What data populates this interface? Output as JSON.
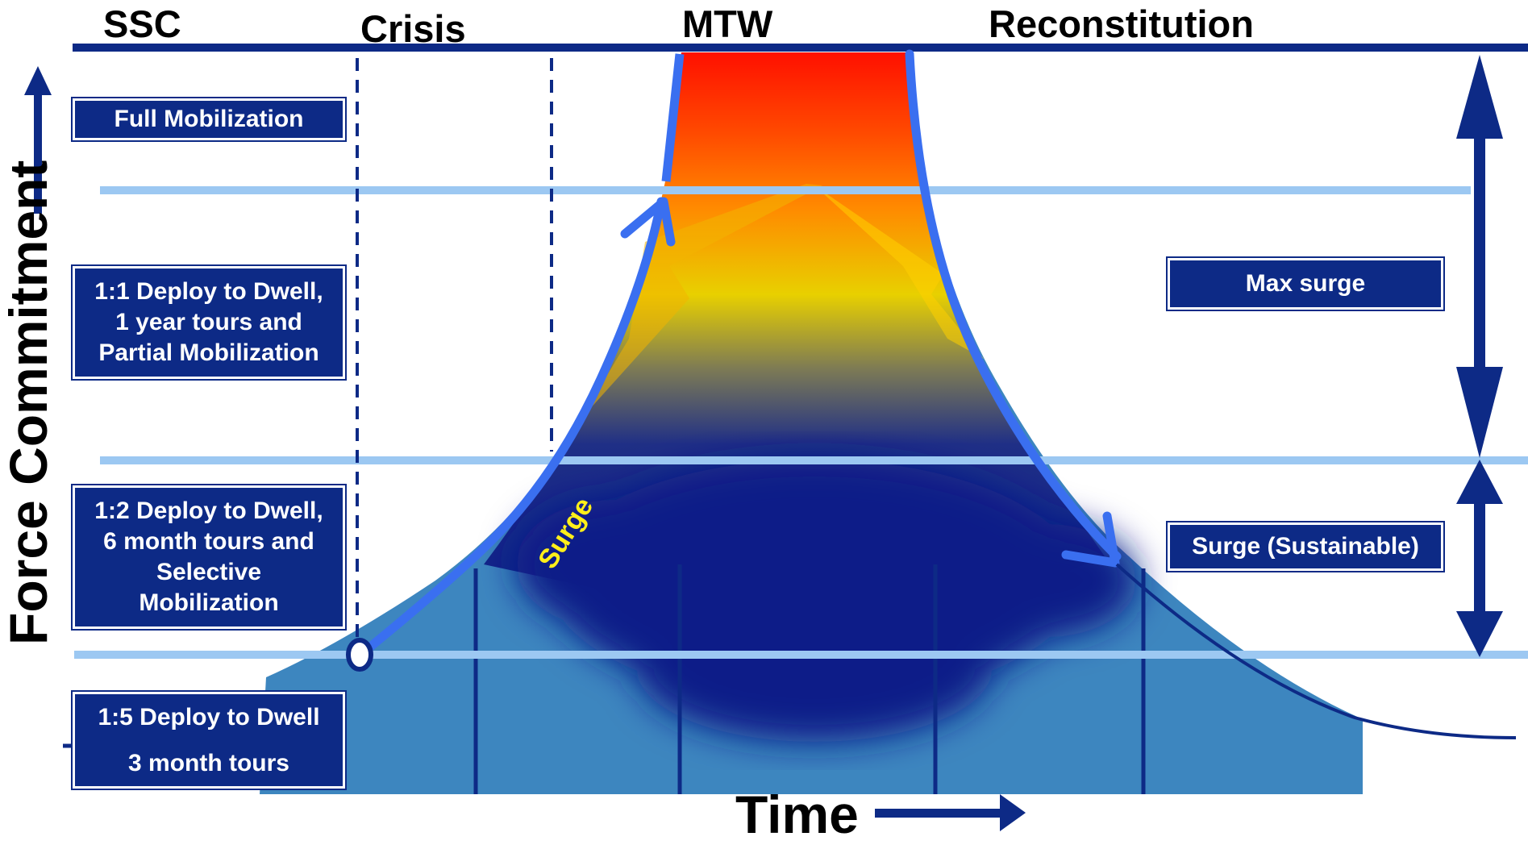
{
  "phases": {
    "ssc": "SSC",
    "crisis": "Crisis",
    "mtw": "MTW",
    "reconstitution": "Reconstitution"
  },
  "levels": {
    "full_mobilization": "Full Mobilization",
    "one_to_one": [
      "1:1 Deploy to Dwell,",
      "1 year tours and",
      "Partial Mobilization"
    ],
    "one_to_two": [
      "1:2 Deploy to Dwell,",
      "6 month tours and",
      "Selective",
      "Mobilization"
    ],
    "one_to_five": [
      "1:5 Deploy to Dwell",
      "3 month tours"
    ]
  },
  "ranges": {
    "max_surge": "Max surge",
    "surge_sustainable": "Surge (Sustainable)"
  },
  "curve_label": "Surge",
  "axes": {
    "y": "Force Commitment",
    "x": "Time"
  },
  "colors": {
    "navy": "#0d2a86",
    "light_blue_line": "#9cc8f2",
    "curve_blue": "#3a6ff0",
    "base_fill": "#3d86bf",
    "hot_red": "#ff1000",
    "surge_text": "#ffef1a"
  }
}
